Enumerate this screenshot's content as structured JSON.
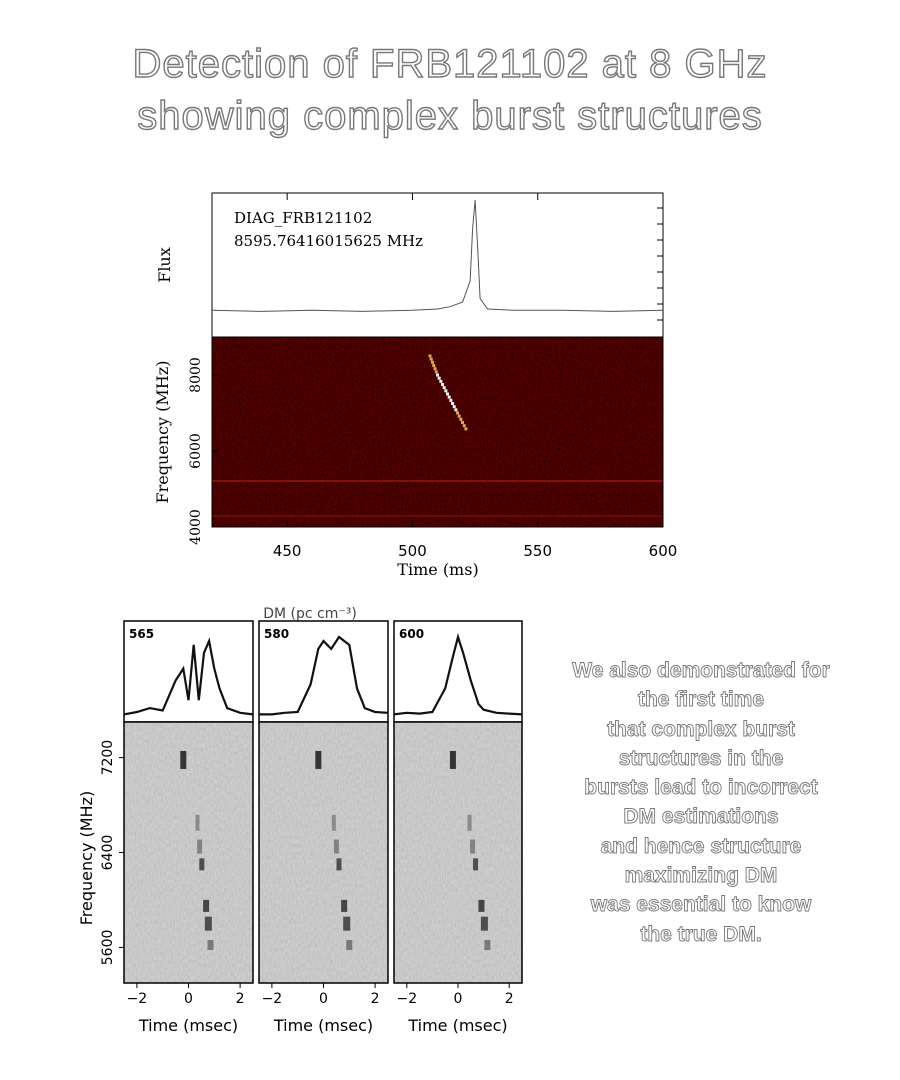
{
  "title": {
    "line1": "Detection of FRB121102 at 8 GHz",
    "line2": "showing complex burst structures"
  },
  "note": {
    "lines": [
      "We also demonstrated for",
      "the first time",
      "that complex burst",
      "structures in the",
      "bursts lead to incorrect",
      "DM estimations",
      "and hence structure",
      "maximizing DM",
      "was essential to know",
      "the true DM."
    ]
  },
  "colors": {
    "waterfall_background": "#5a0a02",
    "burst_hot": "#ffd070",
    "burst_peak": "#ffffff",
    "grey_waterfall": "#d2d2d2",
    "grey_burst": "#1a1a1a"
  },
  "chart_data": [
    {
      "type": "line",
      "panel": "flux",
      "annotation_line1": "DIAG_FRB121102",
      "annotation_line2": "8595.76416015625 MHz",
      "ylabel": "Flux",
      "xlim": [
        420,
        600
      ],
      "x": [
        420,
        440,
        460,
        480,
        500,
        510,
        515,
        520,
        523,
        524,
        525,
        526,
        527,
        530,
        540,
        560,
        580,
        600
      ],
      "y": [
        0.05,
        0.04,
        0.05,
        0.04,
        0.05,
        0.06,
        0.08,
        0.12,
        0.3,
        0.75,
        1.0,
        0.6,
        0.15,
        0.06,
        0.05,
        0.05,
        0.04,
        0.05
      ]
    },
    {
      "type": "heatmap",
      "panel": "dynamic-spectrum",
      "xlabel": "Time (ms)",
      "ylabel": "Frequency (MHz)",
      "xlim": [
        420,
        600
      ],
      "ylim": [
        4000,
        9000
      ],
      "x_ticks": [
        "450",
        "500",
        "550",
        "600"
      ],
      "y_ticks": [
        "4000",
        "6000",
        "8000"
      ],
      "burst_track": {
        "x": [
          507,
          510,
          514,
          518,
          522
        ],
        "y": [
          8500,
          8000,
          7500,
          7000,
          6500
        ]
      }
    },
    {
      "type": "line",
      "panel": "multi-dm",
      "header": "DM (pc cm⁻³)",
      "xlabel": "Time (msec)",
      "ylabel": "Frequency (MHz)",
      "xlim": [
        -2.5,
        2.5
      ],
      "ylim": [
        5300,
        7500
      ],
      "x_ticks": [
        "−2",
        "0",
        "2"
      ],
      "y_ticks": [
        "5600",
        "6400",
        "7200"
      ],
      "series": [
        {
          "name": "565",
          "x": [
            -2.5,
            -2.0,
            -1.5,
            -1.0,
            -0.5,
            -0.2,
            0.0,
            0.2,
            0.4,
            0.6,
            0.8,
            1.0,
            1.2,
            1.5,
            2.0,
            2.5
          ],
          "y": [
            0.02,
            0.05,
            0.1,
            0.07,
            0.45,
            0.6,
            0.2,
            0.9,
            0.2,
            0.8,
            0.95,
            0.6,
            0.35,
            0.1,
            0.04,
            0.02
          ]
        },
        {
          "name": "580",
          "x": [
            -2.5,
            -2.0,
            -1.5,
            -1.0,
            -0.5,
            -0.2,
            0.0,
            0.3,
            0.6,
            1.0,
            1.3,
            1.6,
            2.0,
            2.5
          ],
          "y": [
            0.02,
            0.02,
            0.04,
            0.05,
            0.4,
            0.85,
            0.95,
            0.85,
            1.0,
            0.9,
            0.35,
            0.1,
            0.05,
            0.04
          ]
        },
        {
          "name": "600",
          "x": [
            -2.5,
            -2.0,
            -1.5,
            -1.0,
            -0.5,
            -0.2,
            0.0,
            0.2,
            0.5,
            0.8,
            1.0,
            1.5,
            2.0,
            2.5
          ],
          "y": [
            0.02,
            0.04,
            0.03,
            0.05,
            0.35,
            0.75,
            1.0,
            0.8,
            0.45,
            0.15,
            0.08,
            0.04,
            0.03,
            0.02
          ]
        }
      ]
    }
  ]
}
